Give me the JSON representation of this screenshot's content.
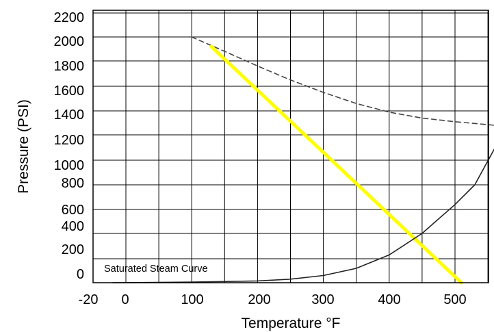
{
  "chart_data": {
    "type": "line",
    "title": "",
    "xlabel": "Temperature °F",
    "ylabel": "Pressure (PSI)",
    "x_ticks": [
      "-20",
      "0",
      "100",
      "200",
      "300",
      "400",
      "500"
    ],
    "y_ticks": [
      "0",
      "200",
      "400",
      "600",
      "800",
      "1000",
      "1200",
      "1400",
      "1600",
      "1800",
      "2000",
      "2200"
    ],
    "xlim": [
      -20,
      560
    ],
    "ylim": [
      0,
      2200
    ],
    "grid": true,
    "annotations": [
      "Saturated Steam Curve"
    ],
    "series": [
      {
        "style": "dashed",
        "color": "#444444",
        "x": [
          100,
          150,
          200,
          250,
          300,
          350,
          400,
          450,
          500,
          560
        ],
        "y": [
          2000,
          1880,
          1760,
          1650,
          1550,
          1460,
          1390,
          1340,
          1310,
          1280
        ]
      },
      {
        "style": "solid",
        "color": "#ffff00",
        "x": [
          130,
          510
        ],
        "y": [
          1920,
          0
        ]
      },
      {
        "style": "solid",
        "color": "#222222",
        "x": [
          -20,
          100,
          200,
          250,
          300,
          350,
          400,
          450,
          500,
          530,
          560
        ],
        "y": [
          0,
          5,
          15,
          30,
          60,
          120,
          230,
          400,
          640,
          800,
          1090
        ]
      }
    ]
  }
}
